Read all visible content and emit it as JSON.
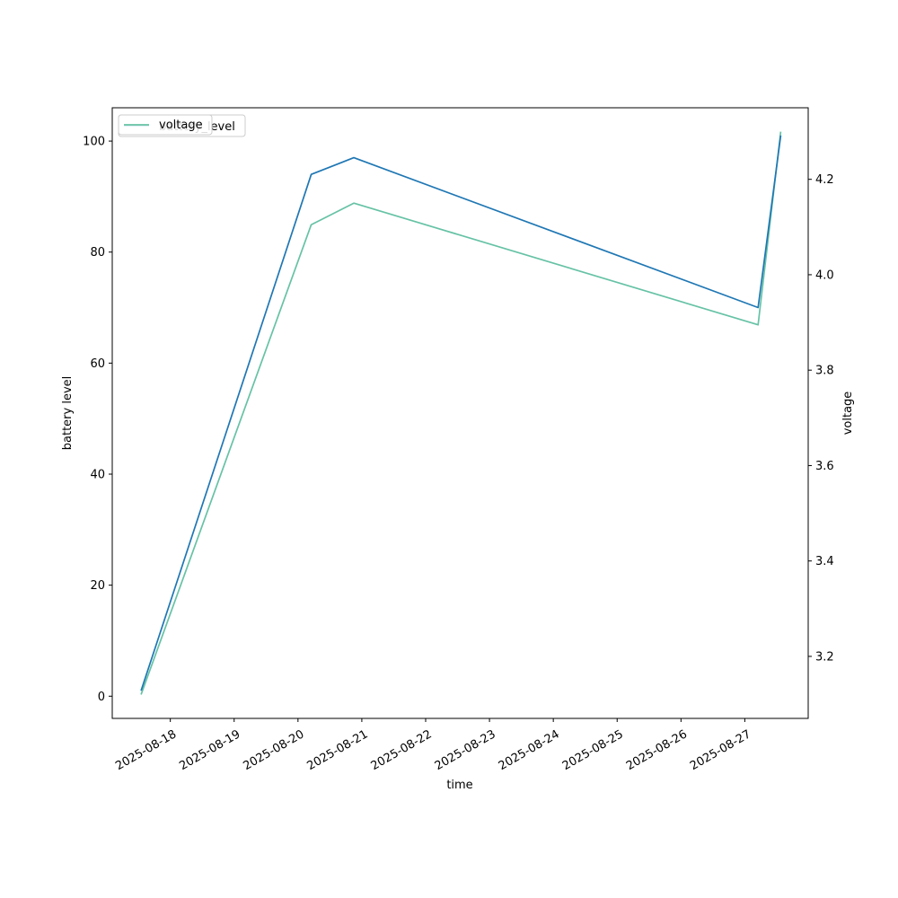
{
  "chart_data": {
    "type": "line",
    "xlabel": "time",
    "ylabel_left": "battery level",
    "ylabel_right": "voltage",
    "x_ticks": [
      "2025-08-18",
      "2025-08-19",
      "2025-08-20",
      "2025-08-21",
      "2025-08-22",
      "2025-08-23",
      "2025-08-24",
      "2025-08-25",
      "2025-08-26",
      "2025-08-27"
    ],
    "xlim": [
      "2025-08-17T02:10",
      "2025-08-27T23:50"
    ],
    "ylim_left": [
      -4,
      106
    ],
    "ylim_right": [
      3.07,
      4.35
    ],
    "yticks_left": [
      0,
      20,
      40,
      60,
      80,
      100
    ],
    "yticks_right": [
      3.2,
      3.4,
      3.6,
      3.8,
      4.0,
      4.2
    ],
    "grid": false,
    "series": [
      {
        "name": "battery_level",
        "axis": "left",
        "color": "#1f77b4",
        "x": [
          "2025-08-17T13:00",
          "2025-08-20T05:00",
          "2025-08-20T21:00",
          "2025-08-27T05:00",
          "2025-08-27T13:30"
        ],
        "y": [
          1,
          94,
          97,
          70,
          101
        ]
      },
      {
        "name": "voltage",
        "axis": "right",
        "color": "#66c2a5",
        "x": [
          "2025-08-17T13:00",
          "2025-08-20T05:00",
          "2025-08-20T21:00",
          "2025-08-27T05:00",
          "2025-08-27T13:30"
        ],
        "y": [
          3.12,
          4.105,
          4.15,
          3.895,
          4.3
        ]
      }
    ],
    "legend": {
      "left_entry": "battery_level",
      "right_entry": "voltage",
      "placement": "upper-left"
    }
  }
}
